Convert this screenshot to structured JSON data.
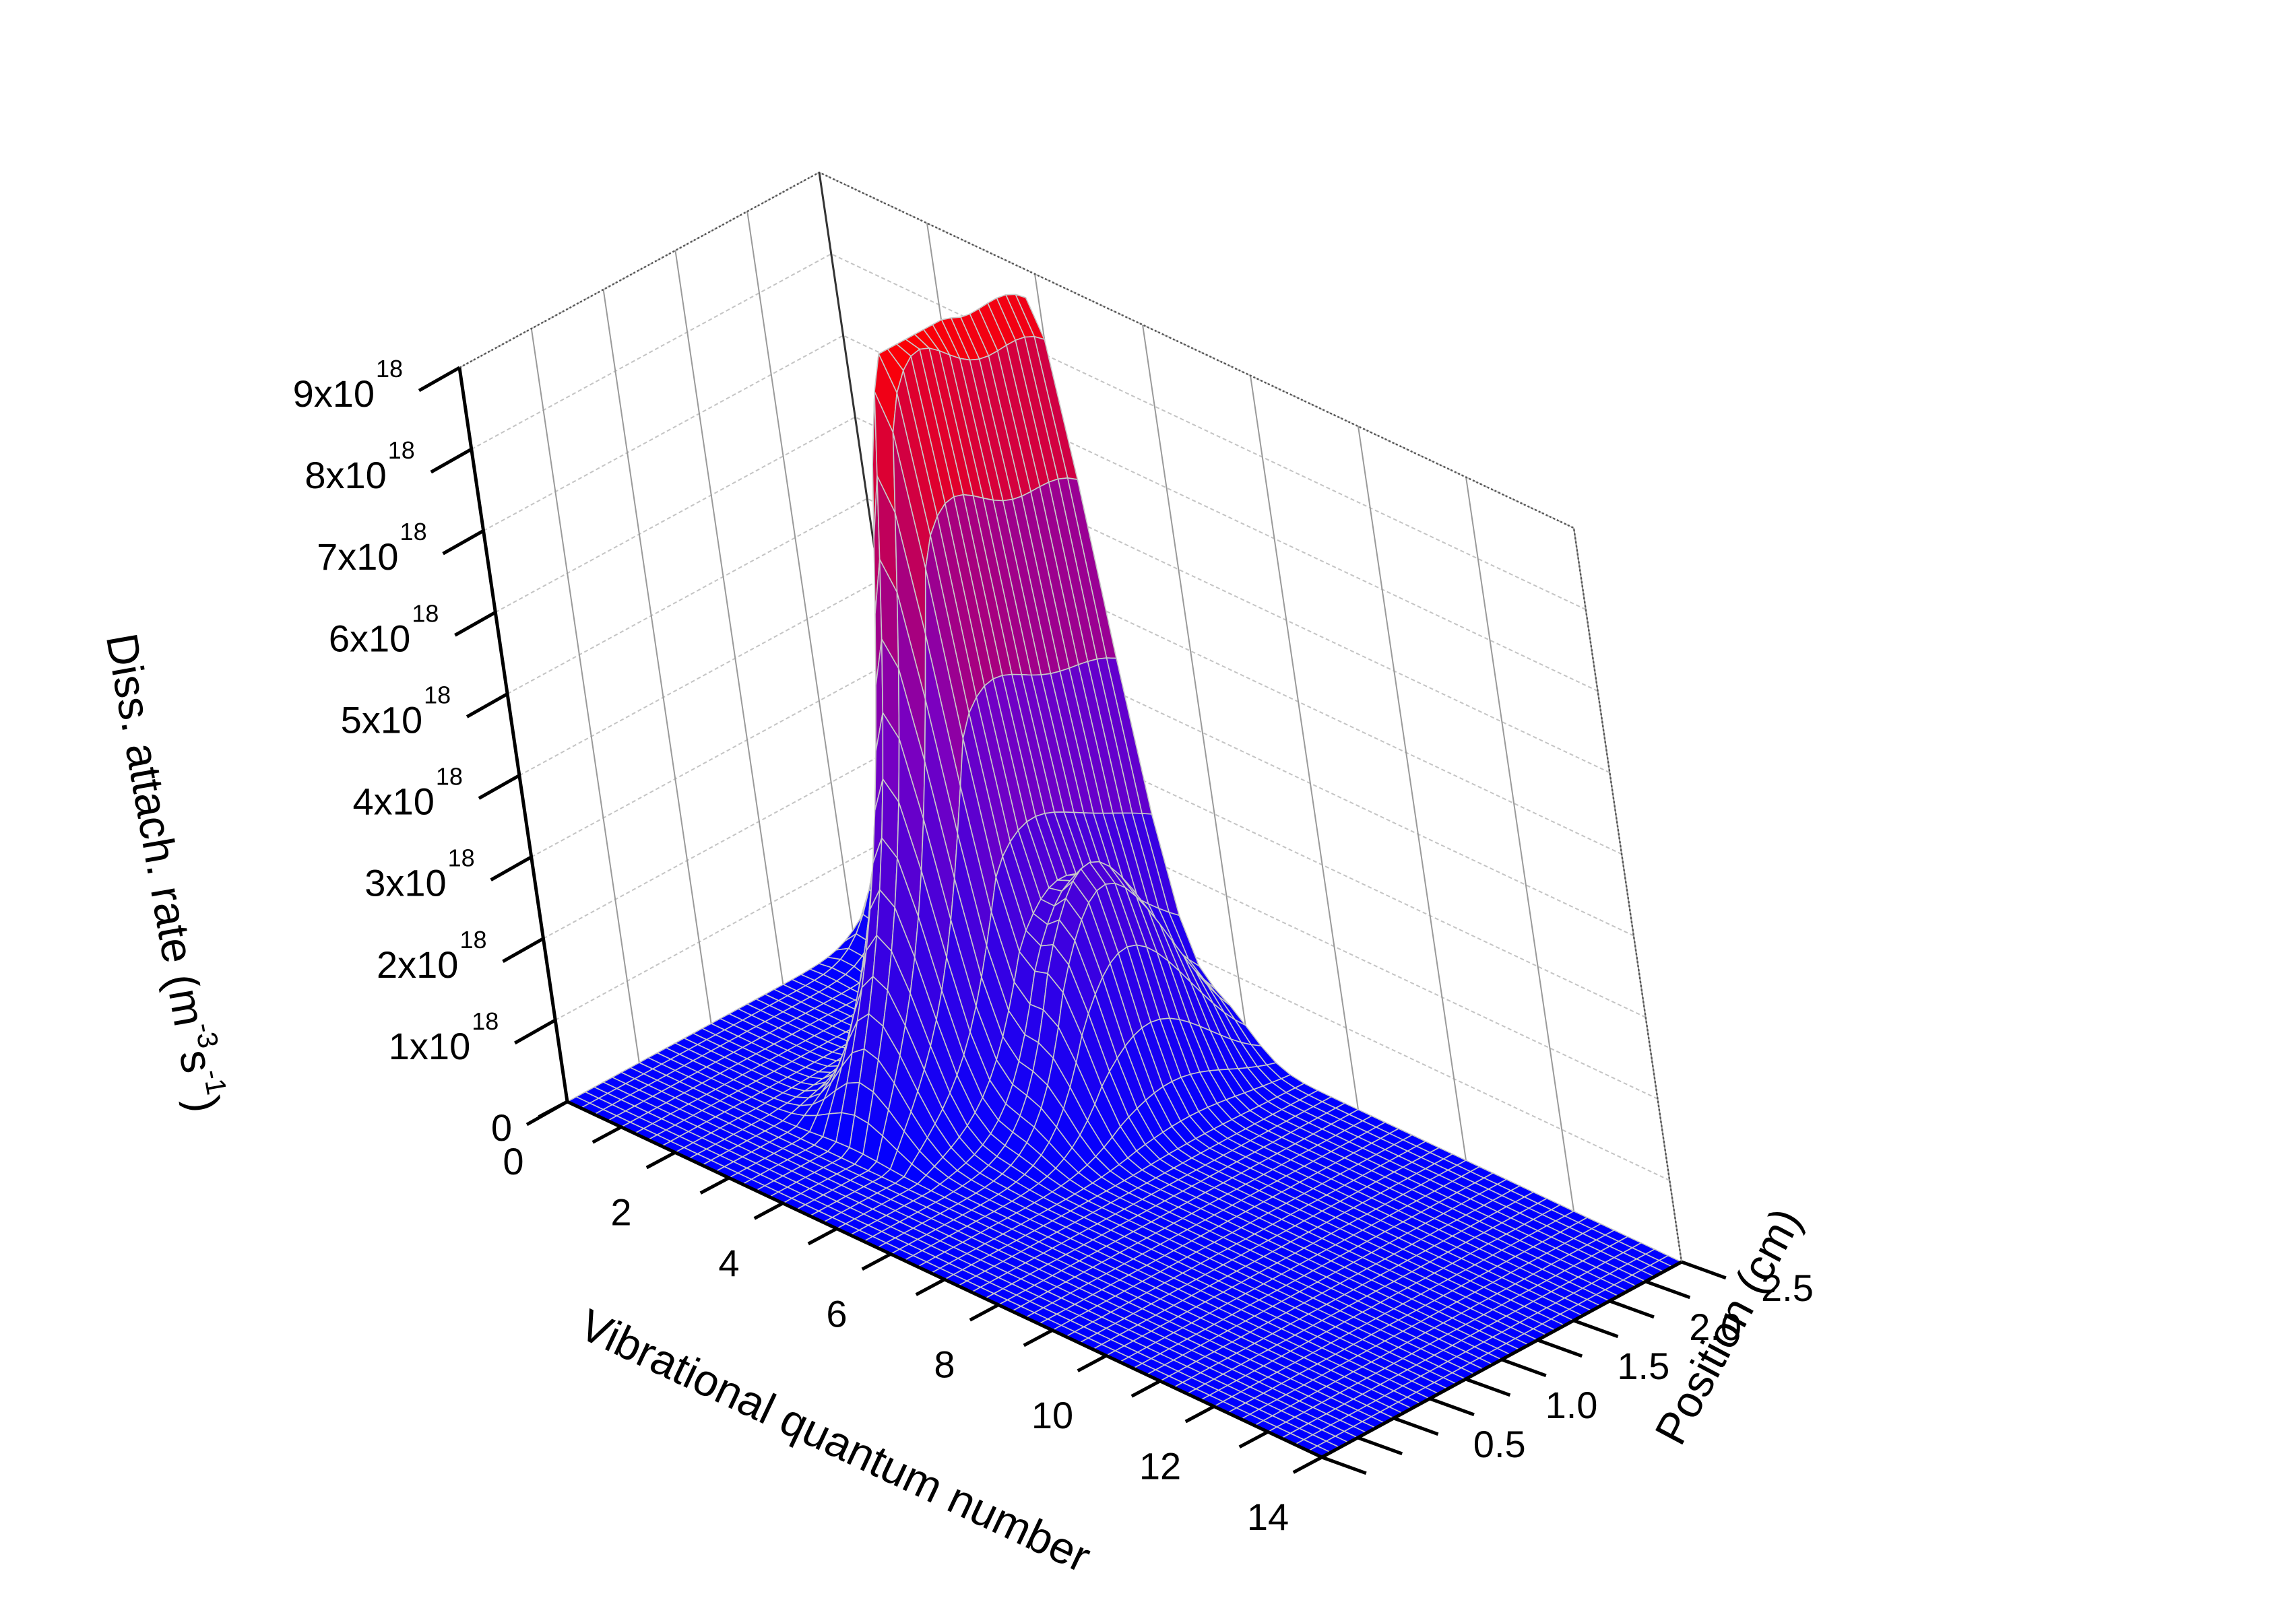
{
  "chart_data": {
    "type": "surface",
    "x_axis": {
      "title": "Vibrational quantum number",
      "range": [
        0,
        14
      ],
      "ticks": [
        0,
        2,
        4,
        6,
        8,
        10,
        12,
        14
      ],
      "tick_labels": [
        "0",
        "2",
        "4",
        "6",
        "8",
        "10",
        "12",
        "14"
      ]
    },
    "y_axis": {
      "title": "Position (cm)",
      "range": [
        0,
        2.5
      ],
      "ticks": [
        0.5,
        1.0,
        1.5,
        2.0,
        2.5
      ],
      "tick_labels": [
        "0.5",
        "1.0",
        "1.5",
        "2.0",
        "2.5"
      ]
    },
    "z_axis": {
      "title_main": "Diss. attach. rate (m",
      "title_sup1": "-3",
      "title_mid": "s",
      "title_sup2": "-1",
      "title_end": ")",
      "range": [
        0,
        9e+18
      ],
      "ticks": [
        0,
        1e+18,
        2e+18,
        3e+18,
        4e+18,
        5e+18,
        6e+18,
        7e+18,
        8e+18,
        9e+18
      ],
      "tick_labels": [
        {
          "base": "0",
          "exp": ""
        },
        {
          "base": "1x10",
          "exp": "18"
        },
        {
          "base": "2x10",
          "exp": "18"
        },
        {
          "base": "3x10",
          "exp": "18"
        },
        {
          "base": "4x10",
          "exp": "18"
        },
        {
          "base": "5x10",
          "exp": "18"
        },
        {
          "base": "6x10",
          "exp": "18"
        },
        {
          "base": "7x10",
          "exp": "18"
        },
        {
          "base": "8x10",
          "exp": "18"
        },
        {
          "base": "9x10",
          "exp": "18"
        }
      ]
    },
    "colormap": {
      "low": "#0000ff",
      "mid": "#7a00c0",
      "high": "#ff0000"
    },
    "mesh_color": "#c8c8c8",
    "grid": true,
    "peaks": [
      {
        "v": 0.1,
        "position_cm": 2.45,
        "rate": 1.6e+18
      },
      {
        "v": 0.4,
        "position_cm": 2.45,
        "rate": 3.1e+18
      },
      {
        "v": 3.0,
        "position_cm": 2.45,
        "rate": 8.3e+18
      },
      {
        "v": 4.0,
        "position_cm": 2.3,
        "rate": 8.9e+18
      },
      {
        "v": 4.2,
        "position_cm": 1.5,
        "rate": 8.9e+18
      },
      {
        "v": 5.5,
        "position_cm": 1.7,
        "rate": 5.5e+18
      }
    ]
  }
}
